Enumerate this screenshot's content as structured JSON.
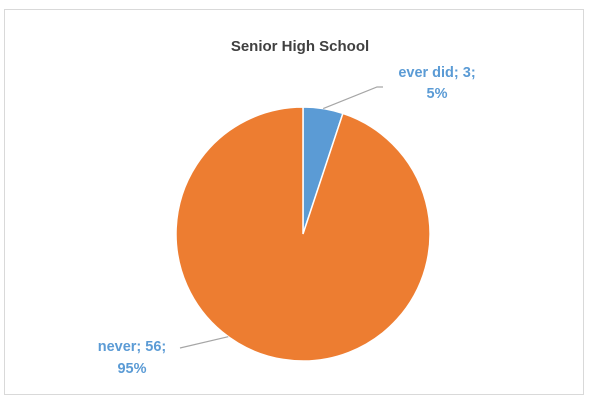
{
  "chart_data": {
    "type": "pie",
    "title": "Senior High School",
    "categories": [
      "ever did",
      "never"
    ],
    "values": [
      3,
      56
    ],
    "percents": [
      "5%",
      "95%"
    ],
    "colors": [
      "#5b9bd5",
      "#ed7d31"
    ],
    "data_labels": [
      {
        "line1": "ever did; 3;",
        "line2": "5%"
      },
      {
        "line1": "never; 56;",
        "line2": "95%"
      }
    ],
    "label_color": "#5b9bd5",
    "legend": "none"
  }
}
